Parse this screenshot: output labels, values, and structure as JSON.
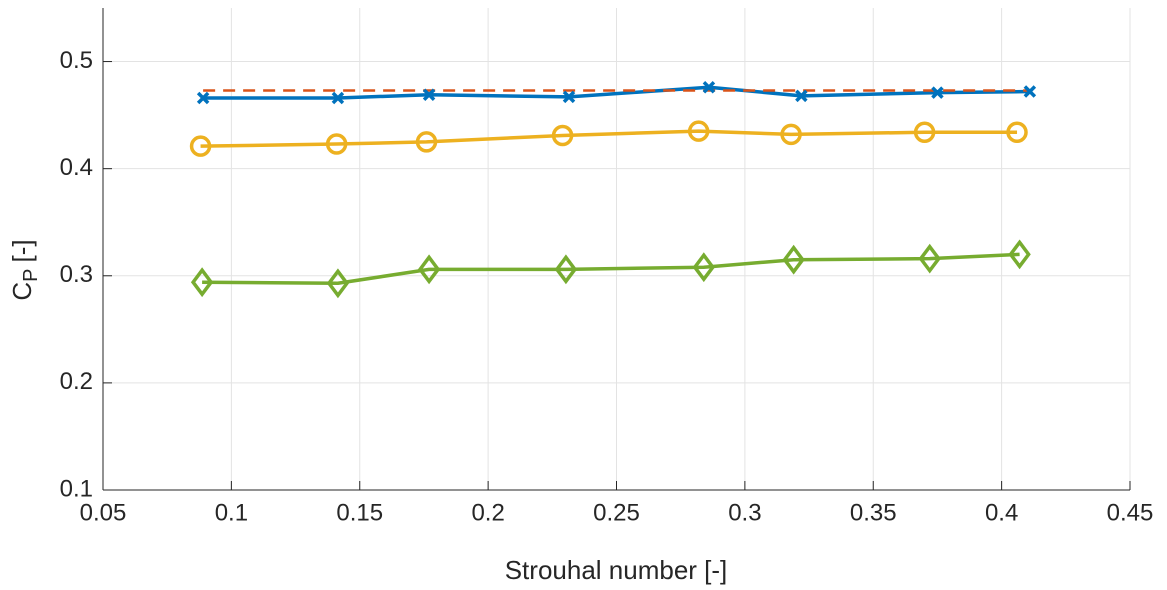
{
  "chart_data": {
    "type": "line",
    "xlabel": "Strouhal number [-]",
    "ylabel": "C",
    "ylabel_sub": "P",
    "ylabel_unit": "[-]",
    "xlim": [
      0.05,
      0.45
    ],
    "xticks": [
      0.05,
      0.1,
      0.15,
      0.2,
      0.25,
      0.3,
      0.35,
      0.4,
      0.45
    ],
    "ylim": [
      0.1,
      0.55
    ],
    "yticks": [
      0.1,
      0.2,
      0.3,
      0.4,
      0.5
    ],
    "grid": true,
    "series": [
      {
        "color": "#0072bd",
        "marker": "x",
        "dash": false,
        "x": [
          0.089,
          0.1415,
          0.177,
          0.2315,
          0.286,
          0.322,
          0.375,
          0.411
        ],
        "values": [
          0.466,
          0.466,
          0.469,
          0.467,
          0.476,
          0.468,
          0.471,
          0.472
        ]
      },
      {
        "color": "#d95319",
        "marker": "none",
        "dash": true,
        "x": [
          0.089,
          0.411
        ],
        "values": [
          0.473,
          0.473
        ]
      },
      {
        "color": "#edb120",
        "marker": "o",
        "dash": false,
        "x": [
          0.088,
          0.141,
          0.176,
          0.229,
          0.282,
          0.318,
          0.37,
          0.406
        ],
        "values": [
          0.421,
          0.423,
          0.425,
          0.431,
          0.435,
          0.432,
          0.434,
          0.434
        ]
      },
      {
        "color": "#77ac30",
        "marker": "diamond",
        "dash": false,
        "x": [
          0.0886,
          0.1415,
          0.177,
          0.2303,
          0.284,
          0.319,
          0.372,
          0.407
        ],
        "values": [
          0.294,
          0.293,
          0.306,
          0.306,
          0.308,
          0.315,
          0.316,
          0.32
        ]
      }
    ]
  }
}
